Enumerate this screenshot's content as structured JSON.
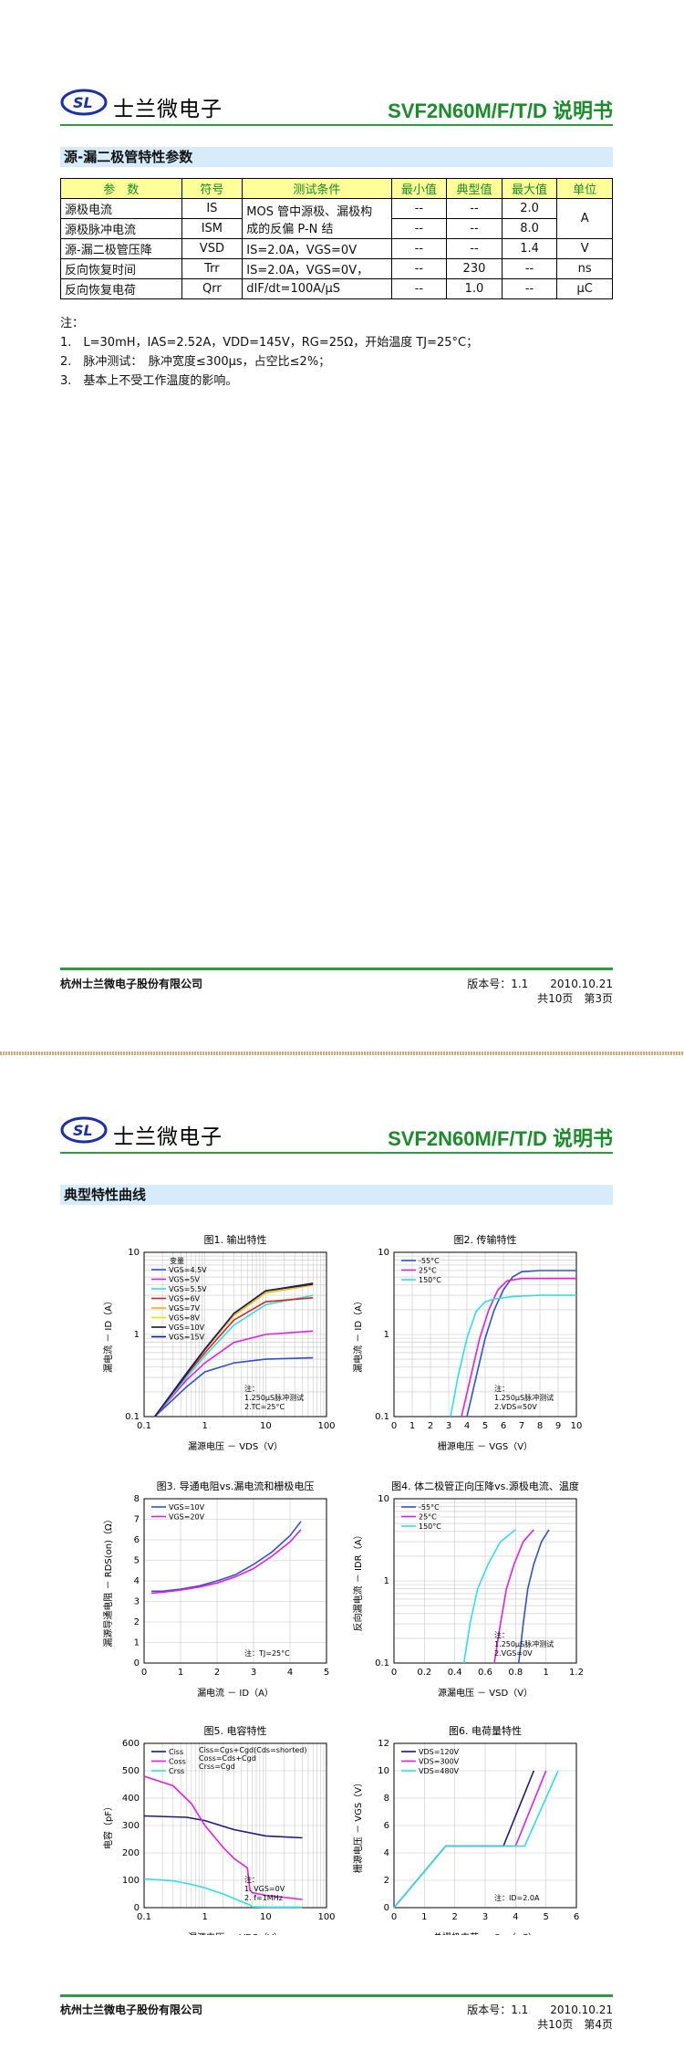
{
  "page3": {
    "company_name": "士兰微电子",
    "doc_title": "SVF2N60M/F/T/D 说明书",
    "section_title": "源-漏二极管特性参数",
    "table": {
      "headers": [
        "参　数",
        "符号",
        "测试条件",
        "最小值",
        "典型值",
        "最大值",
        "单位"
      ],
      "rows": [
        {
          "param": "源极电流",
          "symbol": "IS",
          "min": "--",
          "typ": "--",
          "max": "2.0"
        },
        {
          "param": "源极脉冲电流",
          "symbol": "ISM",
          "min": "--",
          "typ": "--",
          "max": "8.0"
        },
        {
          "param": "源-漏二极管压降",
          "symbol": "VSD",
          "cond": "IS=2.0A，VGS=0V",
          "min": "--",
          "typ": "--",
          "max": "1.4",
          "unit": "V"
        },
        {
          "param": "反向恢复时间",
          "symbol": "Trr",
          "cond": "IS=2.0A，VGS=0V，",
          "min": "--",
          "typ": "230",
          "max": "--",
          "unit": "ns"
        },
        {
          "param": "反向恢复电荷",
          "symbol": "Qrr",
          "cond": "dIF/dt=100A/μS",
          "min": "--",
          "typ": "1.0",
          "max": "--",
          "unit": "μC"
        }
      ],
      "merged_cond_line1": "MOS 管中源极、漏极构",
      "merged_cond_line2": "成的反偏 P-N 结",
      "merged_unit": "A"
    },
    "notes_label": "注：",
    "notes": [
      "1.　L=30mH，IAS=2.52A，VDD=145V，RG=25Ω，开始温度 TJ=25°C；",
      "2.　脉冲测试：　脉冲宽度≤300μs，占空比≤2%；",
      "3.　基本上不受工作温度的影响。"
    ],
    "footer_company": "杭州士兰微电子股份有限公司",
    "footer_version": "版本号：1.1　　2010.10.21",
    "footer_pages": "共10页　第3页"
  },
  "page4": {
    "company_name": "士兰微电子",
    "doc_title": "SVF2N60M/F/T/D 说明书",
    "section_title": "典型特性曲线",
    "footer_company": "杭州士兰微电子股份有限公司",
    "footer_version": "版本号：1.1　　2010.10.21",
    "footer_pages": "共10页　第4页"
  },
  "chart_data": [
    {
      "type": "line",
      "title": "图1. 输出特性",
      "xlabel": "漏源电压 － VDS（V）",
      "ylabel": "漏电流 － ID（A）",
      "xscale": "log",
      "yscale": "log",
      "xlim": [
        0.1,
        100
      ],
      "ylim": [
        0.1,
        10
      ],
      "x_ticks": [
        "0.1",
        "1",
        "10",
        "100"
      ],
      "y_ticks": [
        "0.1",
        "1",
        "10"
      ],
      "legend_title": "变量",
      "annotation": [
        "注：",
        "1.250μS脉冲测试",
        "2.TC=25°C"
      ],
      "series": [
        {
          "name": "VGS=4.5V",
          "color": "#3050d0",
          "x": [
            0.15,
            0.5,
            1,
            3,
            10,
            60
          ],
          "y": [
            0.1,
            0.23,
            0.35,
            0.45,
            0.5,
            0.52
          ]
        },
        {
          "name": "VGS=5V",
          "color": "#e020e0",
          "x": [
            0.15,
            0.5,
            1,
            3,
            10,
            60
          ],
          "y": [
            0.1,
            0.28,
            0.45,
            0.8,
            1.0,
            1.1
          ]
        },
        {
          "name": "VGS=5.5V",
          "color": "#30e0e0",
          "x": [
            0.15,
            0.5,
            1,
            3,
            10,
            60
          ],
          "y": [
            0.1,
            0.3,
            0.55,
            1.3,
            2.3,
            3.0
          ]
        },
        {
          "name": "VGS=6V",
          "color": "#e02020",
          "x": [
            0.15,
            0.5,
            1,
            3,
            10,
            60
          ],
          "y": [
            0.1,
            0.32,
            0.6,
            1.5,
            2.5,
            2.8
          ]
        },
        {
          "name": "VGS=7V",
          "color": "#ffb000",
          "x": [
            0.15,
            0.5,
            1,
            3,
            10,
            60
          ],
          "y": [
            0.1,
            0.33,
            0.65,
            1.7,
            3.2,
            4.0
          ]
        },
        {
          "name": "VGS=8V",
          "color": "#f0e000",
          "x": [
            0.15,
            0.5,
            1,
            3,
            10,
            60
          ],
          "y": [
            0.1,
            0.33,
            0.65,
            1.75,
            3.3,
            4.1
          ]
        },
        {
          "name": "VGS=10V",
          "color": "#1a1a1a",
          "x": [
            0.15,
            0.5,
            1,
            3,
            10,
            60
          ],
          "y": [
            0.1,
            0.33,
            0.66,
            1.8,
            3.4,
            4.1
          ]
        },
        {
          "name": "VGS=15V",
          "color": "#1a1a80",
          "x": [
            0.15,
            0.5,
            1,
            3,
            10,
            60
          ],
          "y": [
            0.1,
            0.34,
            0.67,
            1.8,
            3.4,
            4.2
          ]
        }
      ]
    },
    {
      "type": "line",
      "title": "图2. 传输特性",
      "xlabel": "栅源电压 － VGS（V）",
      "ylabel": "漏电流 － ID（A）",
      "yscale": "log",
      "xlim": [
        0,
        10
      ],
      "ylim": [
        0.1,
        10
      ],
      "x_ticks": [
        "0",
        "1",
        "2",
        "3",
        "4",
        "5",
        "6",
        "7",
        "8",
        "9",
        "10"
      ],
      "y_ticks": [
        "0.1",
        "1",
        "10"
      ],
      "annotation": [
        "注：",
        "1.250μS脉冲测试",
        "2.VDS=50V"
      ],
      "series": [
        {
          "name": "-55°C",
          "color": "#3050d0",
          "x": [
            4.0,
            4.5,
            5.0,
            5.5,
            6.0,
            6.5,
            7.0,
            8.0,
            10.0
          ],
          "y": [
            0.1,
            0.3,
            0.9,
            2.0,
            3.5,
            5.0,
            5.8,
            6.0,
            6.0
          ]
        },
        {
          "name": "25°C",
          "color": "#e020e0",
          "x": [
            3.7,
            4.2,
            4.7,
            5.2,
            5.7,
            6.2,
            7.0,
            8.0,
            10.0
          ],
          "y": [
            0.1,
            0.3,
            0.9,
            2.0,
            3.5,
            4.5,
            4.8,
            4.8,
            4.8
          ]
        },
        {
          "name": "150°C",
          "color": "#30e0e0",
          "x": [
            3.1,
            3.5,
            4.0,
            4.5,
            5.0,
            5.5,
            6.5,
            8.0,
            10.0
          ],
          "y": [
            0.1,
            0.3,
            0.9,
            1.9,
            2.5,
            2.7,
            2.9,
            3.0,
            3.0
          ]
        }
      ]
    },
    {
      "type": "line",
      "title": "图3. 导通电阻vs.漏电流和栅极电压",
      "xlabel": "漏电流 － ID（A）",
      "ylabel": "漏源导通电阻 － RDS(on)（Ω）",
      "xlim": [
        0,
        5
      ],
      "ylim": [
        0,
        8
      ],
      "x_ticks": [
        "0",
        "1",
        "2",
        "3",
        "4",
        "5"
      ],
      "y_ticks": [
        "0",
        "1",
        "2",
        "3",
        "4",
        "5",
        "6",
        "7",
        "8"
      ],
      "annotation": [
        "注：TJ=25°C"
      ],
      "series": [
        {
          "name": "VGS=10V",
          "color": "#3050d0",
          "x": [
            0.2,
            0.5,
            1,
            1.5,
            2,
            2.5,
            3,
            3.5,
            4,
            4.3
          ],
          "y": [
            3.5,
            3.5,
            3.6,
            3.75,
            4.0,
            4.3,
            4.8,
            5.4,
            6.2,
            6.9
          ]
        },
        {
          "name": "VGS=20V",
          "color": "#e020e0",
          "x": [
            0.2,
            0.5,
            1,
            1.5,
            2,
            2.5,
            3,
            3.5,
            4,
            4.3
          ],
          "y": [
            3.4,
            3.45,
            3.55,
            3.7,
            3.9,
            4.2,
            4.6,
            5.2,
            5.9,
            6.5
          ]
        }
      ]
    },
    {
      "type": "line",
      "title": "图4. 体二极管正向压降vs.源极电流、温度",
      "xlabel": "源漏电压 － VSD（V）",
      "ylabel": "反向漏电流 － IDR（A）",
      "yscale": "log",
      "xlim": [
        0,
        1.2
      ],
      "ylim": [
        0.1,
        10
      ],
      "x_ticks": [
        "0",
        "0.2",
        "0.4",
        "0.6",
        "0.8",
        "1",
        "1.2"
      ],
      "y_ticks": [
        "0.1",
        "1",
        "10"
      ],
      "annotation": [
        "注：",
        "1.250μS脉冲测试",
        "2.VGS=0V"
      ],
      "series": [
        {
          "name": "-55°C",
          "color": "#3050d0",
          "x": [
            0.82,
            0.85,
            0.88,
            0.92,
            0.97,
            1.02
          ],
          "y": [
            0.1,
            0.3,
            0.8,
            1.6,
            3.0,
            4.2
          ]
        },
        {
          "name": "25°C",
          "color": "#e020e0",
          "x": [
            0.66,
            0.7,
            0.74,
            0.79,
            0.85,
            0.92
          ],
          "y": [
            0.1,
            0.3,
            0.8,
            1.6,
            3.0,
            4.2
          ]
        },
        {
          "name": "150°C",
          "color": "#30e0e0",
          "x": [
            0.46,
            0.5,
            0.55,
            0.62,
            0.7,
            0.8
          ],
          "y": [
            0.1,
            0.3,
            0.8,
            1.6,
            3.0,
            4.2
          ]
        }
      ]
    },
    {
      "type": "line",
      "title": "图5. 电容特性",
      "xlabel": "漏源电压 － VDS（V）",
      "ylabel": "电容（pF）",
      "xscale": "log",
      "xlim": [
        0.1,
        100
      ],
      "ylim": [
        0,
        600
      ],
      "x_ticks": [
        "0.1",
        "1",
        "10",
        "100"
      ],
      "y_ticks": [
        "0",
        "100",
        "200",
        "300",
        "400",
        "500",
        "600"
      ],
      "formula": [
        "Ciss=Cgs+Cgd(Cds=shorted)",
        "Coss=Cds+Cgd",
        "Crss=Cgd"
      ],
      "annotation": [
        "注：",
        "1. VGS=0V",
        "2. f=1MHz"
      ],
      "series": [
        {
          "name": "Ciss",
          "color": "#1a1a80",
          "x": [
            0.1,
            0.5,
            1,
            3,
            10,
            40
          ],
          "y": [
            335,
            330,
            318,
            285,
            262,
            255
          ]
        },
        {
          "name": "Coss",
          "color": "#e020e0",
          "x": [
            0.1,
            0.3,
            0.6,
            1,
            2,
            3,
            4,
            5,
            5.5,
            6,
            10,
            40
          ],
          "y": [
            480,
            445,
            380,
            300,
            220,
            180,
            160,
            145,
            65,
            55,
            45,
            30
          ]
        },
        {
          "name": "Crss",
          "color": "#30e0e0",
          "x": [
            0.1,
            0.3,
            0.6,
            1,
            2,
            4,
            5.5,
            6,
            10,
            40
          ],
          "y": [
            105,
            98,
            85,
            72,
            50,
            22,
            10,
            3,
            2,
            2
          ]
        }
      ]
    },
    {
      "type": "line",
      "title": "图6. 电荷量特性",
      "xlabel": "总栅极电荷 － Qg（nC）",
      "ylabel": "栅源电压 － VGS（V）",
      "xlim": [
        0,
        6
      ],
      "ylim": [
        0,
        12
      ],
      "x_ticks": [
        "0",
        "1",
        "2",
        "3",
        "4",
        "5",
        "6"
      ],
      "y_ticks": [
        "0",
        "2",
        "4",
        "6",
        "8",
        "10",
        "12"
      ],
      "annotation": [
        "注：ID=2.0A"
      ],
      "series": [
        {
          "name": "VDS=120V",
          "color": "#1a1a80",
          "x": [
            0,
            1.7,
            3.6,
            4.6
          ],
          "y": [
            0,
            4.5,
            4.5,
            10
          ]
        },
        {
          "name": "VDS=300V",
          "color": "#e020e0",
          "x": [
            0,
            1.7,
            4.0,
            5.0
          ],
          "y": [
            0,
            4.5,
            4.5,
            10
          ]
        },
        {
          "name": "VDS=480V",
          "color": "#30e0e0",
          "x": [
            0,
            1.7,
            4.3,
            5.4
          ],
          "y": [
            0,
            4.5,
            4.5,
            10
          ]
        }
      ]
    }
  ]
}
